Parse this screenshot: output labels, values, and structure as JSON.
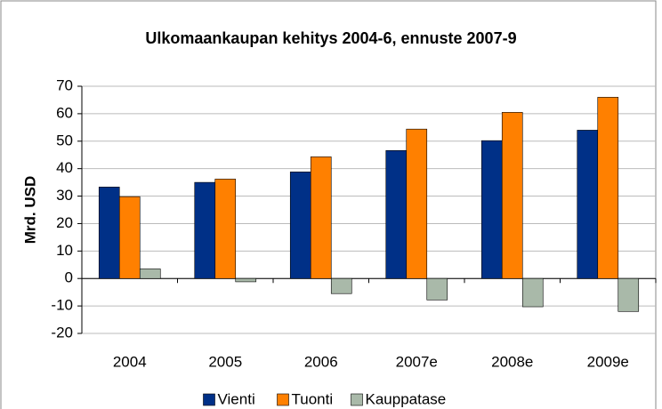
{
  "chart_data": {
    "type": "bar",
    "title": "Ulkomaankaupan kehitys 2004-6, ennuste 2007-9",
    "y_label": "Mrd. USD",
    "categories": [
      "2004",
      "2005",
      "2006",
      "2007e",
      "2008e",
      "2009e"
    ],
    "series": [
      {
        "name": "Vienti",
        "color": "#003087",
        "values": [
          33.3,
          35,
          38.8,
          46.6,
          50.2,
          54
        ]
      },
      {
        "name": "Tuonti",
        "color": "#ff8000",
        "values": [
          29.8,
          36.2,
          44.3,
          54.4,
          60.5,
          66
        ]
      },
      {
        "name": "Kauppatase",
        "color": "#a9b9a9",
        "values": [
          3.5,
          -1.2,
          -5.5,
          -7.8,
          -10.3,
          -12
        ]
      }
    ],
    "ylim": [
      -20,
      70
    ],
    "yticks": [
      -20,
      -10,
      0,
      10,
      20,
      30,
      40,
      50,
      60,
      70
    ],
    "grid": true,
    "legend": "bottom"
  }
}
